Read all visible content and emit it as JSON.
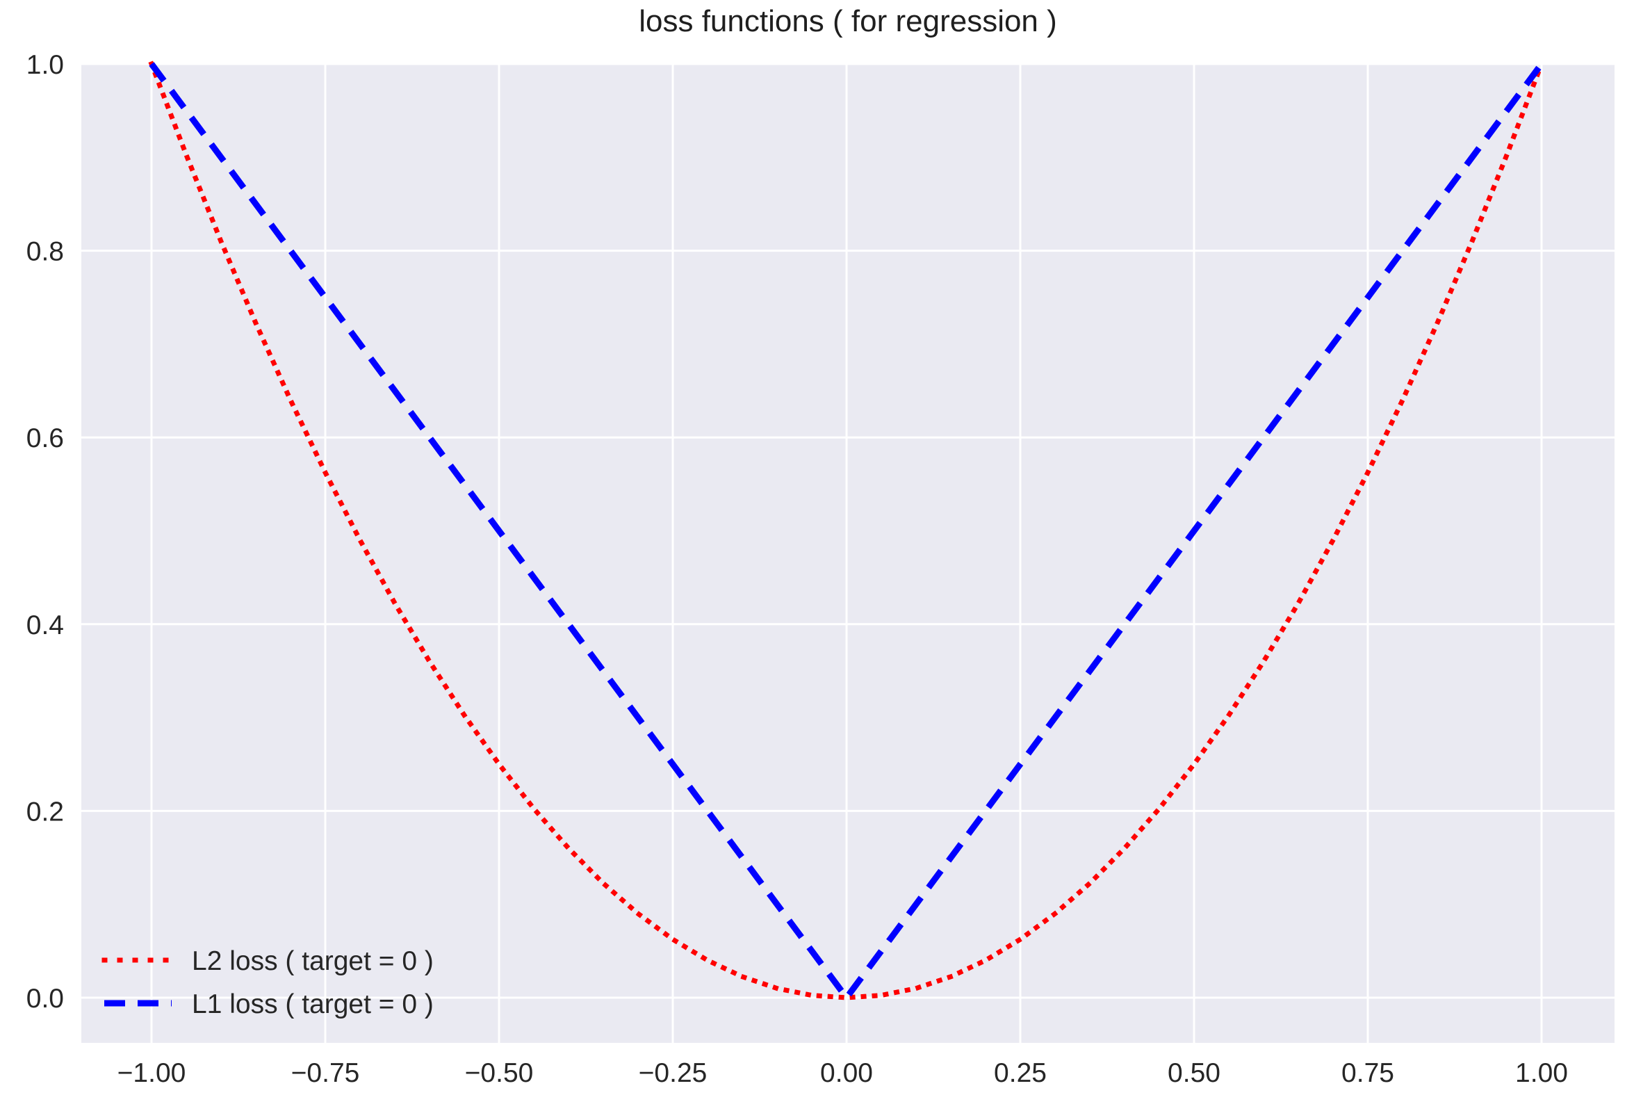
{
  "chart_data": {
    "type": "line",
    "title": "loss functions ( for regression )",
    "xlabel": "",
    "ylabel": "",
    "xlim": [
      -1.101,
      1.105
    ],
    "ylim": [
      -0.0484,
      1.0
    ],
    "grid": true,
    "background_color": "#eaeaf2",
    "gridline_color": "#ffffff",
    "text_color": "#262626",
    "legend_position": "lower left",
    "xticks": {
      "values": [
        -1.0,
        -0.75,
        -0.5,
        -0.25,
        0.0,
        0.25,
        0.5,
        0.75,
        1.0
      ],
      "labels": [
        "−1.00",
        "−0.75",
        "−0.50",
        "−0.25",
        "0.00",
        "0.25",
        "0.50",
        "0.75",
        "1.00"
      ]
    },
    "yticks": {
      "values": [
        0.0,
        0.2,
        0.4,
        0.6,
        0.8,
        1.0
      ],
      "labels": [
        "0.0",
        "0.2",
        "0.4",
        "0.6",
        "0.8",
        "1.0"
      ]
    },
    "series": [
      {
        "name": "l2-loss",
        "label": "L2 loss ( target = 0 )",
        "color": "#ff0000",
        "linestyle": "dotted",
        "x": [
          -1.0,
          -0.95,
          -0.9,
          -0.85,
          -0.8,
          -0.75,
          -0.7,
          -0.65,
          -0.6,
          -0.55,
          -0.5,
          -0.45,
          -0.4,
          -0.35,
          -0.3,
          -0.25,
          -0.2,
          -0.15,
          -0.1,
          -0.05,
          0.0,
          0.05,
          0.1,
          0.15,
          0.2,
          0.25,
          0.3,
          0.35,
          0.4,
          0.45,
          0.5,
          0.55,
          0.6,
          0.65,
          0.7,
          0.75,
          0.8,
          0.85,
          0.9,
          0.95,
          1.0
        ],
        "y": [
          1.0,
          0.9025,
          0.81,
          0.7225,
          0.64,
          0.5625,
          0.49,
          0.4225,
          0.36,
          0.3025,
          0.25,
          0.2025,
          0.16,
          0.1225,
          0.09,
          0.0625,
          0.04,
          0.0225,
          0.01,
          0.0025,
          0.0,
          0.0025,
          0.01,
          0.0225,
          0.04,
          0.0625,
          0.09,
          0.1225,
          0.16,
          0.2025,
          0.25,
          0.3025,
          0.36,
          0.4225,
          0.49,
          0.5625,
          0.64,
          0.7225,
          0.81,
          0.9025,
          1.0
        ]
      },
      {
        "name": "l1-loss",
        "label": "L1 loss ( target = 0 )",
        "color": "#0000ff",
        "linestyle": "dashed",
        "x": [
          -1.0,
          0.0,
          1.0
        ],
        "y": [
          1.0,
          0.0,
          1.0
        ]
      }
    ]
  }
}
